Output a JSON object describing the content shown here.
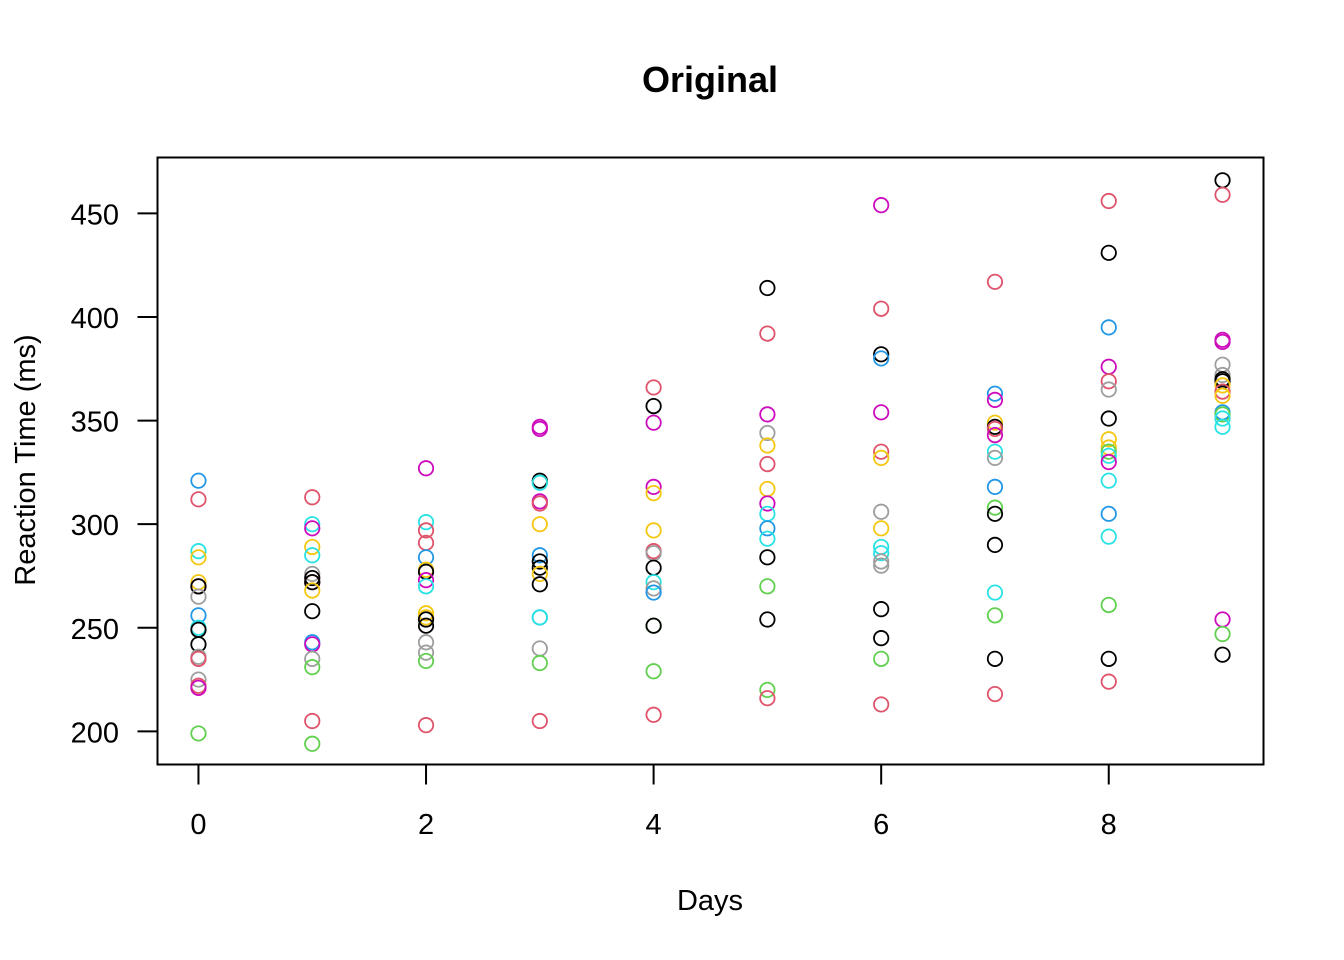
{
  "chart_data": {
    "type": "scatter",
    "title": "Original",
    "xlabel": "Days",
    "ylabel": "Reaction Time (ms)",
    "xlim": [
      -0.36,
      9.36
    ],
    "ylim": [
      184,
      477
    ],
    "x_ticks": [
      0,
      2,
      4,
      6,
      8
    ],
    "y_ticks": [
      200,
      250,
      300,
      350,
      400,
      450
    ],
    "grid": false,
    "legend": "none",
    "colors": {
      "black": "#000000",
      "red": "#DF536B",
      "green": "#61D04F",
      "blue": "#2297E6",
      "cyan": "#28E2E5",
      "magenta": "#CD0BBC",
      "yellow": "#F5C710",
      "gray": "#9E9E9E"
    },
    "points": [
      {
        "x": 0,
        "y": 321,
        "c": "blue"
      },
      {
        "x": 0,
        "y": 312,
        "c": "red"
      },
      {
        "x": 0,
        "y": 287,
        "c": "cyan"
      },
      {
        "x": 0,
        "y": 284,
        "c": "yellow"
      },
      {
        "x": 0,
        "y": 272,
        "c": "yellow"
      },
      {
        "x": 0,
        "y": 270,
        "c": "red"
      },
      {
        "x": 0,
        "y": 270,
        "c": "black"
      },
      {
        "x": 0,
        "y": 265,
        "c": "gray"
      },
      {
        "x": 0,
        "y": 256,
        "c": "blue"
      },
      {
        "x": 0,
        "y": 250,
        "c": "cyan"
      },
      {
        "x": 0,
        "y": 249,
        "c": "black"
      },
      {
        "x": 0,
        "y": 242,
        "c": "black"
      },
      {
        "x": 0,
        "y": 236,
        "c": "gray"
      },
      {
        "x": 0,
        "y": 235,
        "c": "red"
      },
      {
        "x": 0,
        "y": 225,
        "c": "gray"
      },
      {
        "x": 0,
        "y": 222,
        "c": "red"
      },
      {
        "x": 0,
        "y": 221,
        "c": "magenta"
      },
      {
        "x": 0,
        "y": 199,
        "c": "green"
      },
      {
        "x": 1,
        "y": 313,
        "c": "red"
      },
      {
        "x": 1,
        "y": 300,
        "c": "cyan"
      },
      {
        "x": 1,
        "y": 298,
        "c": "magenta"
      },
      {
        "x": 1,
        "y": 289,
        "c": "yellow"
      },
      {
        "x": 1,
        "y": 285,
        "c": "cyan"
      },
      {
        "x": 1,
        "y": 276,
        "c": "gray"
      },
      {
        "x": 1,
        "y": 274,
        "c": "black"
      },
      {
        "x": 1,
        "y": 272,
        "c": "red"
      },
      {
        "x": 1,
        "y": 272,
        "c": "black"
      },
      {
        "x": 1,
        "y": 268,
        "c": "yellow"
      },
      {
        "x": 1,
        "y": 258,
        "c": "black"
      },
      {
        "x": 1,
        "y": 243,
        "c": "blue"
      },
      {
        "x": 1,
        "y": 242,
        "c": "magenta"
      },
      {
        "x": 1,
        "y": 235,
        "c": "gray"
      },
      {
        "x": 1,
        "y": 231,
        "c": "green"
      },
      {
        "x": 1,
        "y": 205,
        "c": "red"
      },
      {
        "x": 1,
        "y": 194,
        "c": "green"
      },
      {
        "x": 2,
        "y": 327,
        "c": "magenta"
      },
      {
        "x": 2,
        "y": 301,
        "c": "cyan"
      },
      {
        "x": 2,
        "y": 297,
        "c": "red"
      },
      {
        "x": 2,
        "y": 291,
        "c": "red"
      },
      {
        "x": 2,
        "y": 284,
        "c": "blue"
      },
      {
        "x": 2,
        "y": 278,
        "c": "yellow"
      },
      {
        "x": 2,
        "y": 277,
        "c": "black"
      },
      {
        "x": 2,
        "y": 273,
        "c": "magenta"
      },
      {
        "x": 2,
        "y": 270,
        "c": "cyan"
      },
      {
        "x": 2,
        "y": 257,
        "c": "yellow"
      },
      {
        "x": 2,
        "y": 255,
        "c": "yellow"
      },
      {
        "x": 2,
        "y": 254,
        "c": "black"
      },
      {
        "x": 2,
        "y": 251,
        "c": "black"
      },
      {
        "x": 2,
        "y": 243,
        "c": "gray"
      },
      {
        "x": 2,
        "y": 238,
        "c": "gray"
      },
      {
        "x": 2,
        "y": 234,
        "c": "green"
      },
      {
        "x": 2,
        "y": 203,
        "c": "red"
      },
      {
        "x": 3,
        "y": 347,
        "c": "magenta"
      },
      {
        "x": 3,
        "y": 346,
        "c": "magenta"
      },
      {
        "x": 3,
        "y": 321,
        "c": "black"
      },
      {
        "x": 3,
        "y": 320,
        "c": "cyan"
      },
      {
        "x": 3,
        "y": 311,
        "c": "magenta"
      },
      {
        "x": 3,
        "y": 310,
        "c": "red"
      },
      {
        "x": 3,
        "y": 300,
        "c": "yellow"
      },
      {
        "x": 3,
        "y": 285,
        "c": "blue"
      },
      {
        "x": 3,
        "y": 282,
        "c": "black"
      },
      {
        "x": 3,
        "y": 279,
        "c": "black"
      },
      {
        "x": 3,
        "y": 276,
        "c": "yellow"
      },
      {
        "x": 3,
        "y": 271,
        "c": "black"
      },
      {
        "x": 3,
        "y": 255,
        "c": "blue"
      },
      {
        "x": 3,
        "y": 255,
        "c": "cyan"
      },
      {
        "x": 3,
        "y": 240,
        "c": "gray"
      },
      {
        "x": 3,
        "y": 233,
        "c": "green"
      },
      {
        "x": 3,
        "y": 205,
        "c": "red"
      },
      {
        "x": 4,
        "y": 366,
        "c": "red"
      },
      {
        "x": 4,
        "y": 357,
        "c": "black"
      },
      {
        "x": 4,
        "y": 349,
        "c": "magenta"
      },
      {
        "x": 4,
        "y": 318,
        "c": "magenta"
      },
      {
        "x": 4,
        "y": 315,
        "c": "yellow"
      },
      {
        "x": 4,
        "y": 297,
        "c": "yellow"
      },
      {
        "x": 4,
        "y": 287,
        "c": "red"
      },
      {
        "x": 4,
        "y": 286,
        "c": "gray"
      },
      {
        "x": 4,
        "y": 279,
        "c": "black"
      },
      {
        "x": 4,
        "y": 272,
        "c": "cyan"
      },
      {
        "x": 4,
        "y": 269,
        "c": "gray"
      },
      {
        "x": 4,
        "y": 267,
        "c": "blue"
      },
      {
        "x": 4,
        "y": 251,
        "c": "green"
      },
      {
        "x": 4,
        "y": 251,
        "c": "black"
      },
      {
        "x": 4,
        "y": 229,
        "c": "green"
      },
      {
        "x": 4,
        "y": 208,
        "c": "red"
      },
      {
        "x": 5,
        "y": 414,
        "c": "black"
      },
      {
        "x": 5,
        "y": 392,
        "c": "red"
      },
      {
        "x": 5,
        "y": 353,
        "c": "magenta"
      },
      {
        "x": 5,
        "y": 344,
        "c": "gray"
      },
      {
        "x": 5,
        "y": 338,
        "c": "yellow"
      },
      {
        "x": 5,
        "y": 329,
        "c": "red"
      },
      {
        "x": 5,
        "y": 317,
        "c": "yellow"
      },
      {
        "x": 5,
        "y": 310,
        "c": "magenta"
      },
      {
        "x": 5,
        "y": 305,
        "c": "cyan"
      },
      {
        "x": 5,
        "y": 298,
        "c": "blue"
      },
      {
        "x": 5,
        "y": 293,
        "c": "cyan"
      },
      {
        "x": 5,
        "y": 284,
        "c": "black"
      },
      {
        "x": 5,
        "y": 270,
        "c": "green"
      },
      {
        "x": 5,
        "y": 254,
        "c": "black"
      },
      {
        "x": 5,
        "y": 220,
        "c": "green"
      },
      {
        "x": 5,
        "y": 216,
        "c": "red"
      },
      {
        "x": 6,
        "y": 454,
        "c": "magenta"
      },
      {
        "x": 6,
        "y": 404,
        "c": "red"
      },
      {
        "x": 6,
        "y": 382,
        "c": "black"
      },
      {
        "x": 6,
        "y": 380,
        "c": "blue"
      },
      {
        "x": 6,
        "y": 354,
        "c": "magenta"
      },
      {
        "x": 6,
        "y": 335,
        "c": "red"
      },
      {
        "x": 6,
        "y": 332,
        "c": "yellow"
      },
      {
        "x": 6,
        "y": 306,
        "c": "gray"
      },
      {
        "x": 6,
        "y": 298,
        "c": "yellow"
      },
      {
        "x": 6,
        "y": 289,
        "c": "cyan"
      },
      {
        "x": 6,
        "y": 286,
        "c": "cyan"
      },
      {
        "x": 6,
        "y": 282,
        "c": "gray"
      },
      {
        "x": 6,
        "y": 280,
        "c": "gray"
      },
      {
        "x": 6,
        "y": 259,
        "c": "black"
      },
      {
        "x": 6,
        "y": 245,
        "c": "black"
      },
      {
        "x": 6,
        "y": 235,
        "c": "green"
      },
      {
        "x": 6,
        "y": 213,
        "c": "red"
      },
      {
        "x": 7,
        "y": 417,
        "c": "red"
      },
      {
        "x": 7,
        "y": 363,
        "c": "blue"
      },
      {
        "x": 7,
        "y": 360,
        "c": "magenta"
      },
      {
        "x": 7,
        "y": 349,
        "c": "yellow"
      },
      {
        "x": 7,
        "y": 347,
        "c": "black"
      },
      {
        "x": 7,
        "y": 346,
        "c": "red"
      },
      {
        "x": 7,
        "y": 343,
        "c": "magenta"
      },
      {
        "x": 7,
        "y": 335,
        "c": "cyan"
      },
      {
        "x": 7,
        "y": 332,
        "c": "gray"
      },
      {
        "x": 7,
        "y": 318,
        "c": "blue"
      },
      {
        "x": 7,
        "y": 308,
        "c": "green"
      },
      {
        "x": 7,
        "y": 305,
        "c": "black"
      },
      {
        "x": 7,
        "y": 290,
        "c": "black"
      },
      {
        "x": 7,
        "y": 267,
        "c": "cyan"
      },
      {
        "x": 7,
        "y": 256,
        "c": "green"
      },
      {
        "x": 7,
        "y": 235,
        "c": "black"
      },
      {
        "x": 7,
        "y": 218,
        "c": "red"
      },
      {
        "x": 8,
        "y": 456,
        "c": "red"
      },
      {
        "x": 8,
        "y": 431,
        "c": "black"
      },
      {
        "x": 8,
        "y": 395,
        "c": "blue"
      },
      {
        "x": 8,
        "y": 376,
        "c": "magenta"
      },
      {
        "x": 8,
        "y": 369,
        "c": "red"
      },
      {
        "x": 8,
        "y": 365,
        "c": "gray"
      },
      {
        "x": 8,
        "y": 351,
        "c": "black"
      },
      {
        "x": 8,
        "y": 341,
        "c": "yellow"
      },
      {
        "x": 8,
        "y": 337,
        "c": "yellow"
      },
      {
        "x": 8,
        "y": 335,
        "c": "green"
      },
      {
        "x": 8,
        "y": 333,
        "c": "cyan"
      },
      {
        "x": 8,
        "y": 330,
        "c": "magenta"
      },
      {
        "x": 8,
        "y": 321,
        "c": "cyan"
      },
      {
        "x": 8,
        "y": 305,
        "c": "blue"
      },
      {
        "x": 8,
        "y": 294,
        "c": "cyan"
      },
      {
        "x": 8,
        "y": 261,
        "c": "green"
      },
      {
        "x": 8,
        "y": 235,
        "c": "black"
      },
      {
        "x": 8,
        "y": 224,
        "c": "red"
      },
      {
        "x": 9,
        "y": 466,
        "c": "black"
      },
      {
        "x": 9,
        "y": 459,
        "c": "red"
      },
      {
        "x": 9,
        "y": 389,
        "c": "magenta"
      },
      {
        "x": 9,
        "y": 388,
        "c": "magenta"
      },
      {
        "x": 9,
        "y": 377,
        "c": "gray"
      },
      {
        "x": 9,
        "y": 372,
        "c": "gray"
      },
      {
        "x": 9,
        "y": 370,
        "c": "black"
      },
      {
        "x": 9,
        "y": 369,
        "c": "black"
      },
      {
        "x": 9,
        "y": 367,
        "c": "yellow"
      },
      {
        "x": 9,
        "y": 364,
        "c": "red"
      },
      {
        "x": 9,
        "y": 362,
        "c": "yellow"
      },
      {
        "x": 9,
        "y": 354,
        "c": "blue"
      },
      {
        "x": 9,
        "y": 353,
        "c": "green"
      },
      {
        "x": 9,
        "y": 351,
        "c": "cyan"
      },
      {
        "x": 9,
        "y": 347,
        "c": "cyan"
      },
      {
        "x": 9,
        "y": 254,
        "c": "magenta"
      },
      {
        "x": 9,
        "y": 247,
        "c": "green"
      },
      {
        "x": 9,
        "y": 237,
        "c": "black"
      }
    ]
  }
}
